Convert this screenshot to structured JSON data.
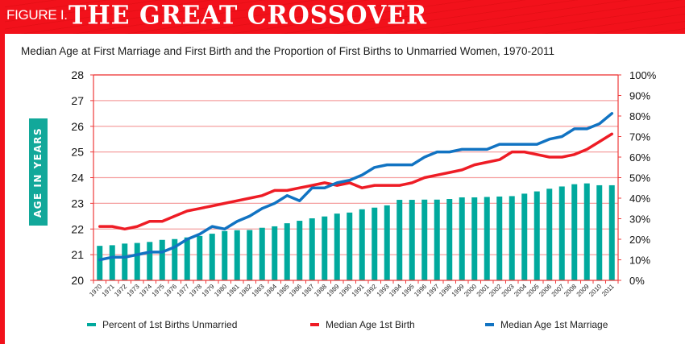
{
  "header": {
    "figure_label": "FIGURE I.",
    "title": "THE GREAT CROSSOVER"
  },
  "colors": {
    "brand_red": "#f2111b",
    "bar_teal": "#00a99d",
    "birth_red": "#ee1c25",
    "marriage_blue": "#1173c2",
    "grid": "#f5a0a0",
    "axis": "#ee3a3a"
  },
  "chart_data": {
    "type": "bar",
    "title": "Median Age at First Marriage and First Birth and the Proportion of First Births to Unmarried Women, 1970-2011",
    "ylabel": "AGE IN YEARS",
    "xlabel": "",
    "ylim": [
      20,
      28
    ],
    "y_ticks": [
      "20",
      "21",
      "22",
      "23",
      "24",
      "25",
      "26",
      "27",
      "28"
    ],
    "y2lim": [
      0,
      100
    ],
    "y2_ticks": [
      "0%",
      "10%",
      "20%",
      "30%",
      "40%",
      "50%",
      "60%",
      "70%",
      "80%",
      "90%",
      "100%"
    ],
    "grid": true,
    "legend_position": "bottom",
    "categories": [
      "1970",
      "1971",
      "1972",
      "1973",
      "1974",
      "1975",
      "1976",
      "1977",
      "1978",
      "1979",
      "1980",
      "1981",
      "1982",
      "1983",
      "1984",
      "1985",
      "1986",
      "1987",
      "1988",
      "1989",
      "1990",
      "1991",
      "1992",
      "1993",
      "1994",
      "1995",
      "1996",
      "1997",
      "1998",
      "1999",
      "2000",
      "2001",
      "2002",
      "2003",
      "2004",
      "2005",
      "2006",
      "2007",
      "2008",
      "2009",
      "2010",
      "2011"
    ],
    "series": [
      {
        "name": "Percent of 1st Births Unmarried",
        "type": "bar",
        "axis": "right",
        "values": [
          16.8,
          17.1,
          17.9,
          18.2,
          18.7,
          19.7,
          20.1,
          20.9,
          21.6,
          22.7,
          24.0,
          24.4,
          24.5,
          25.6,
          26.3,
          27.8,
          29.0,
          30.2,
          31.1,
          32.5,
          33.0,
          34.6,
          35.4,
          36.5,
          39.2,
          39.2,
          39.3,
          39.3,
          39.6,
          40.4,
          40.4,
          40.6,
          40.8,
          41.0,
          42.2,
          43.3,
          44.6,
          45.7,
          46.8,
          47.2,
          46.3,
          46.3
        ]
      },
      {
        "name": "Median Age 1st Birth",
        "type": "line",
        "axis": "left",
        "values": [
          22.1,
          22.1,
          22.0,
          22.1,
          22.3,
          22.3,
          22.5,
          22.7,
          22.8,
          22.9,
          23.0,
          23.1,
          23.2,
          23.3,
          23.5,
          23.5,
          23.6,
          23.7,
          23.8,
          23.7,
          23.8,
          23.6,
          23.7,
          23.7,
          23.7,
          23.8,
          24.0,
          24.1,
          24.2,
          24.3,
          24.5,
          24.6,
          24.7,
          25.0,
          25.0,
          24.9,
          24.8,
          24.8,
          24.9,
          25.1,
          25.4,
          25.7
        ]
      },
      {
        "name": "Median Age 1st Marriage",
        "type": "line",
        "axis": "left",
        "values": [
          20.8,
          20.9,
          20.9,
          21.0,
          21.1,
          21.1,
          21.3,
          21.6,
          21.8,
          22.1,
          22.0,
          22.3,
          22.5,
          22.8,
          23.0,
          23.3,
          23.1,
          23.6,
          23.6,
          23.8,
          23.9,
          24.1,
          24.4,
          24.5,
          24.5,
          24.5,
          24.8,
          25.0,
          25.0,
          25.1,
          25.1,
          25.1,
          25.3,
          25.3,
          25.3,
          25.3,
          25.5,
          25.6,
          25.9,
          25.9,
          26.1,
          26.5
        ]
      }
    ]
  },
  "legend": {
    "items": [
      {
        "label": "Percent of 1st Births Unmarried"
      },
      {
        "label": "Median Age 1st Birth"
      },
      {
        "label": "Median Age 1st Marriage"
      }
    ]
  }
}
